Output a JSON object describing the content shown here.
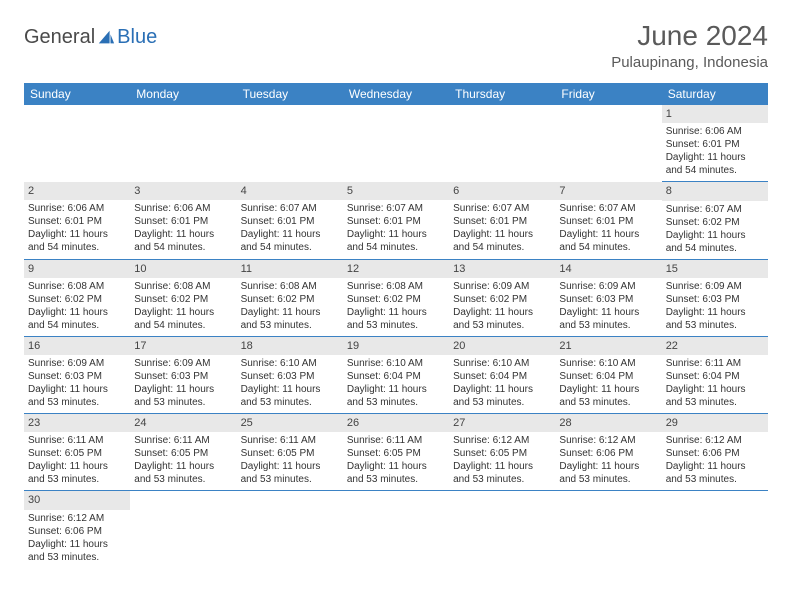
{
  "logo": {
    "text1": "General",
    "text2": "Blue"
  },
  "title": "June 2024",
  "location": "Pulaupinang, Indonesia",
  "colors": {
    "header_bg": "#3b82c4",
    "header_text": "#ffffff",
    "daynum_bg": "#e8e8e8",
    "row_border": "#3b82c4",
    "logo_gray": "#4a4a4a",
    "logo_blue": "#2a6fb5"
  },
  "daysOfWeek": [
    "Sunday",
    "Monday",
    "Tuesday",
    "Wednesday",
    "Thursday",
    "Friday",
    "Saturday"
  ],
  "startDayIndex": 6,
  "numDays": 30,
  "days": {
    "1": {
      "sunrise": "6:06 AM",
      "sunset": "6:01 PM",
      "daylight": "11 hours and 54 minutes."
    },
    "2": {
      "sunrise": "6:06 AM",
      "sunset": "6:01 PM",
      "daylight": "11 hours and 54 minutes."
    },
    "3": {
      "sunrise": "6:06 AM",
      "sunset": "6:01 PM",
      "daylight": "11 hours and 54 minutes."
    },
    "4": {
      "sunrise": "6:07 AM",
      "sunset": "6:01 PM",
      "daylight": "11 hours and 54 minutes."
    },
    "5": {
      "sunrise": "6:07 AM",
      "sunset": "6:01 PM",
      "daylight": "11 hours and 54 minutes."
    },
    "6": {
      "sunrise": "6:07 AM",
      "sunset": "6:01 PM",
      "daylight": "11 hours and 54 minutes."
    },
    "7": {
      "sunrise": "6:07 AM",
      "sunset": "6:01 PM",
      "daylight": "11 hours and 54 minutes."
    },
    "8": {
      "sunrise": "6:07 AM",
      "sunset": "6:02 PM",
      "daylight": "11 hours and 54 minutes."
    },
    "9": {
      "sunrise": "6:08 AM",
      "sunset": "6:02 PM",
      "daylight": "11 hours and 54 minutes."
    },
    "10": {
      "sunrise": "6:08 AM",
      "sunset": "6:02 PM",
      "daylight": "11 hours and 54 minutes."
    },
    "11": {
      "sunrise": "6:08 AM",
      "sunset": "6:02 PM",
      "daylight": "11 hours and 53 minutes."
    },
    "12": {
      "sunrise": "6:08 AM",
      "sunset": "6:02 PM",
      "daylight": "11 hours and 53 minutes."
    },
    "13": {
      "sunrise": "6:09 AM",
      "sunset": "6:02 PM",
      "daylight": "11 hours and 53 minutes."
    },
    "14": {
      "sunrise": "6:09 AM",
      "sunset": "6:03 PM",
      "daylight": "11 hours and 53 minutes."
    },
    "15": {
      "sunrise": "6:09 AM",
      "sunset": "6:03 PM",
      "daylight": "11 hours and 53 minutes."
    },
    "16": {
      "sunrise": "6:09 AM",
      "sunset": "6:03 PM",
      "daylight": "11 hours and 53 minutes."
    },
    "17": {
      "sunrise": "6:09 AM",
      "sunset": "6:03 PM",
      "daylight": "11 hours and 53 minutes."
    },
    "18": {
      "sunrise": "6:10 AM",
      "sunset": "6:03 PM",
      "daylight": "11 hours and 53 minutes."
    },
    "19": {
      "sunrise": "6:10 AM",
      "sunset": "6:04 PM",
      "daylight": "11 hours and 53 minutes."
    },
    "20": {
      "sunrise": "6:10 AM",
      "sunset": "6:04 PM",
      "daylight": "11 hours and 53 minutes."
    },
    "21": {
      "sunrise": "6:10 AM",
      "sunset": "6:04 PM",
      "daylight": "11 hours and 53 minutes."
    },
    "22": {
      "sunrise": "6:11 AM",
      "sunset": "6:04 PM",
      "daylight": "11 hours and 53 minutes."
    },
    "23": {
      "sunrise": "6:11 AM",
      "sunset": "6:05 PM",
      "daylight": "11 hours and 53 minutes."
    },
    "24": {
      "sunrise": "6:11 AM",
      "sunset": "6:05 PM",
      "daylight": "11 hours and 53 minutes."
    },
    "25": {
      "sunrise": "6:11 AM",
      "sunset": "6:05 PM",
      "daylight": "11 hours and 53 minutes."
    },
    "26": {
      "sunrise": "6:11 AM",
      "sunset": "6:05 PM",
      "daylight": "11 hours and 53 minutes."
    },
    "27": {
      "sunrise": "6:12 AM",
      "sunset": "6:05 PM",
      "daylight": "11 hours and 53 minutes."
    },
    "28": {
      "sunrise": "6:12 AM",
      "sunset": "6:06 PM",
      "daylight": "11 hours and 53 minutes."
    },
    "29": {
      "sunrise": "6:12 AM",
      "sunset": "6:06 PM",
      "daylight": "11 hours and 53 minutes."
    },
    "30": {
      "sunrise": "6:12 AM",
      "sunset": "6:06 PM",
      "daylight": "11 hours and 53 minutes."
    }
  },
  "labels": {
    "sunrise": "Sunrise:",
    "sunset": "Sunset:",
    "daylight": "Daylight:"
  }
}
